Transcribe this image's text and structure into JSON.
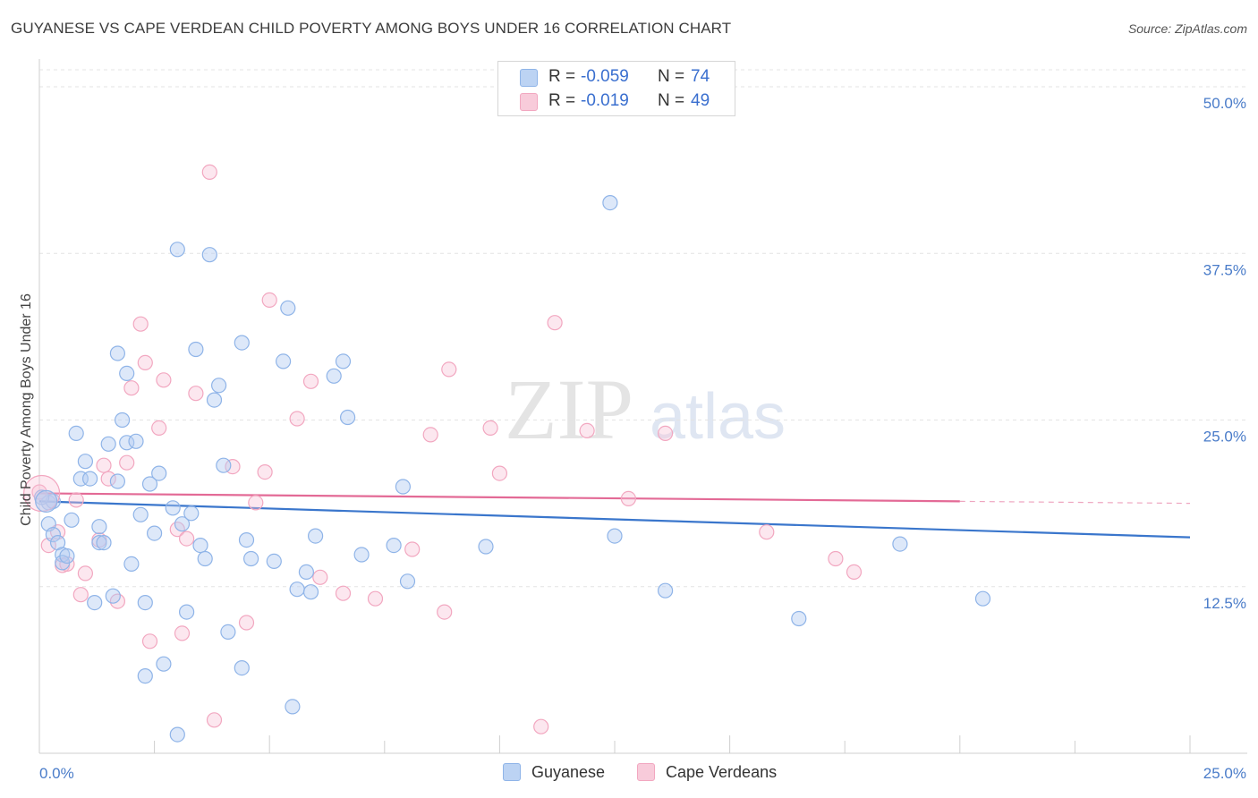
{
  "title": "GUYANESE VS CAPE VERDEAN CHILD POVERTY AMONG BOYS UNDER 16 CORRELATION CHART",
  "source": "Source: ZipAtlas.com",
  "watermark": {
    "zip": "ZIP",
    "atlas": "atlas"
  },
  "legend": {
    "rows": [
      {
        "r_label": "R =",
        "r_value": "-0.059",
        "n_label": "N =",
        "n_value": "74"
      },
      {
        "r_label": "R =",
        "r_value": "-0.019",
        "n_label": "N =",
        "n_value": "49"
      }
    ]
  },
  "bottom_legend": [
    "Guyanese",
    "Cape Verdeans"
  ],
  "chart_data": {
    "type": "scatter",
    "title": "GUYANESE VS CAPE VERDEAN CHILD POVERTY AMONG BOYS UNDER 16 CORRELATION CHART",
    "xlabel": "",
    "ylabel": "Child Poverty Among Boys Under 16",
    "xlim": [
      0,
      25
    ],
    "ylim": [
      0,
      50
    ],
    "x_tick_labels": [
      "0.0%",
      "25.0%"
    ],
    "y_tick_labels": [
      "12.5%",
      "25.0%",
      "37.5%",
      "50.0%"
    ],
    "y_ticks": [
      12.5,
      25,
      37.5,
      50
    ],
    "grid": true,
    "legend_placement": "top-center",
    "colors": {
      "guyanese": "#8fb4e8",
      "guyanese_line": "#3a76cc",
      "cape_verdeans": "#f2a7c0",
      "cape_verdeans_line": "#e36a96"
    },
    "series": [
      {
        "name": "Guyanese",
        "r": -0.059,
        "n": 74,
        "trend": [
          [
            0,
            18.9
          ],
          [
            25,
            16.2
          ]
        ],
        "points": [
          [
            0.2,
            18.8
          ],
          [
            0.3,
            18.9
          ],
          [
            0.2,
            17.2
          ],
          [
            0.3,
            16.4
          ],
          [
            0.4,
            15.8
          ],
          [
            0.5,
            14.9
          ],
          [
            0.5,
            14.3
          ],
          [
            0.6,
            14.8
          ],
          [
            0.7,
            17.5
          ],
          [
            0.8,
            24.0
          ],
          [
            0.9,
            20.6
          ],
          [
            1.0,
            21.9
          ],
          [
            1.1,
            20.6
          ],
          [
            1.2,
            11.3
          ],
          [
            1.3,
            15.8
          ],
          [
            1.3,
            17.0
          ],
          [
            1.4,
            15.8
          ],
          [
            1.5,
            23.2
          ],
          [
            1.6,
            11.8
          ],
          [
            1.7,
            20.4
          ],
          [
            1.7,
            30.0
          ],
          [
            1.8,
            25.0
          ],
          [
            1.9,
            23.3
          ],
          [
            1.9,
            28.5
          ],
          [
            2.0,
            14.2
          ],
          [
            2.1,
            23.4
          ],
          [
            2.2,
            17.9
          ],
          [
            2.3,
            5.8
          ],
          [
            2.3,
            11.3
          ],
          [
            2.4,
            20.2
          ],
          [
            2.5,
            16.5
          ],
          [
            2.6,
            21.0
          ],
          [
            2.7,
            6.7
          ],
          [
            2.9,
            18.4
          ],
          [
            3.0,
            37.8
          ],
          [
            3.0,
            1.4
          ],
          [
            3.1,
            17.2
          ],
          [
            3.2,
            10.6
          ],
          [
            3.3,
            18.0
          ],
          [
            3.4,
            30.3
          ],
          [
            3.5,
            15.6
          ],
          [
            3.6,
            14.6
          ],
          [
            3.7,
            37.4
          ],
          [
            3.8,
            26.5
          ],
          [
            3.9,
            27.6
          ],
          [
            4.0,
            21.6
          ],
          [
            4.1,
            9.1
          ],
          [
            4.4,
            30.8
          ],
          [
            4.4,
            6.4
          ],
          [
            4.5,
            16.0
          ],
          [
            4.6,
            14.6
          ],
          [
            5.1,
            14.4
          ],
          [
            5.3,
            29.4
          ],
          [
            5.4,
            33.4
          ],
          [
            5.5,
            3.5
          ],
          [
            5.6,
            12.3
          ],
          [
            5.8,
            13.6
          ],
          [
            5.9,
            12.1
          ],
          [
            6.0,
            16.3
          ],
          [
            6.4,
            28.3
          ],
          [
            6.6,
            29.4
          ],
          [
            6.7,
            25.2
          ],
          [
            7.0,
            14.9
          ],
          [
            7.7,
            15.6
          ],
          [
            7.9,
            20.0
          ],
          [
            8.0,
            12.9
          ],
          [
            9.7,
            15.5
          ],
          [
            12.4,
            41.3
          ],
          [
            12.5,
            16.3
          ],
          [
            13.6,
            12.2
          ],
          [
            16.5,
            10.1
          ],
          [
            18.7,
            15.7
          ],
          [
            20.5,
            11.6
          ],
          [
            0.05,
            19.2
          ]
        ]
      },
      {
        "name": "Cape Verdeans",
        "r": -0.019,
        "n": 49,
        "trend": [
          [
            0,
            19.5
          ],
          [
            20,
            18.9
          ]
        ],
        "points": [
          [
            0.0,
            19.6
          ],
          [
            0.2,
            15.6
          ],
          [
            0.4,
            16.6
          ],
          [
            0.5,
            14.1
          ],
          [
            0.6,
            14.2
          ],
          [
            0.8,
            19.0
          ],
          [
            0.9,
            11.9
          ],
          [
            1.0,
            13.5
          ],
          [
            1.3,
            16.0
          ],
          [
            1.4,
            21.6
          ],
          [
            1.5,
            20.6
          ],
          [
            1.7,
            11.4
          ],
          [
            1.9,
            21.8
          ],
          [
            2.0,
            27.4
          ],
          [
            2.2,
            32.2
          ],
          [
            2.3,
            29.3
          ],
          [
            2.4,
            8.4
          ],
          [
            2.6,
            24.4
          ],
          [
            2.7,
            28.0
          ],
          [
            3.0,
            16.8
          ],
          [
            3.1,
            9.0
          ],
          [
            3.2,
            16.1
          ],
          [
            3.4,
            27.0
          ],
          [
            3.7,
            43.6
          ],
          [
            3.8,
            2.5
          ],
          [
            4.2,
            21.5
          ],
          [
            4.5,
            9.8
          ],
          [
            4.7,
            18.8
          ],
          [
            4.9,
            21.1
          ],
          [
            5.0,
            34.0
          ],
          [
            5.6,
            25.1
          ],
          [
            5.9,
            27.9
          ],
          [
            6.1,
            13.2
          ],
          [
            6.6,
            12.0
          ],
          [
            7.3,
            11.6
          ],
          [
            8.1,
            15.3
          ],
          [
            8.5,
            23.9
          ],
          [
            8.8,
            10.6
          ],
          [
            8.9,
            28.8
          ],
          [
            9.8,
            24.4
          ],
          [
            10.0,
            21.0
          ],
          [
            10.9,
            2.0
          ],
          [
            11.2,
            32.3
          ],
          [
            11.9,
            24.2
          ],
          [
            12.8,
            19.1
          ],
          [
            13.6,
            24.0
          ],
          [
            15.8,
            16.6
          ],
          [
            17.3,
            14.6
          ],
          [
            17.7,
            13.6
          ]
        ]
      }
    ]
  }
}
